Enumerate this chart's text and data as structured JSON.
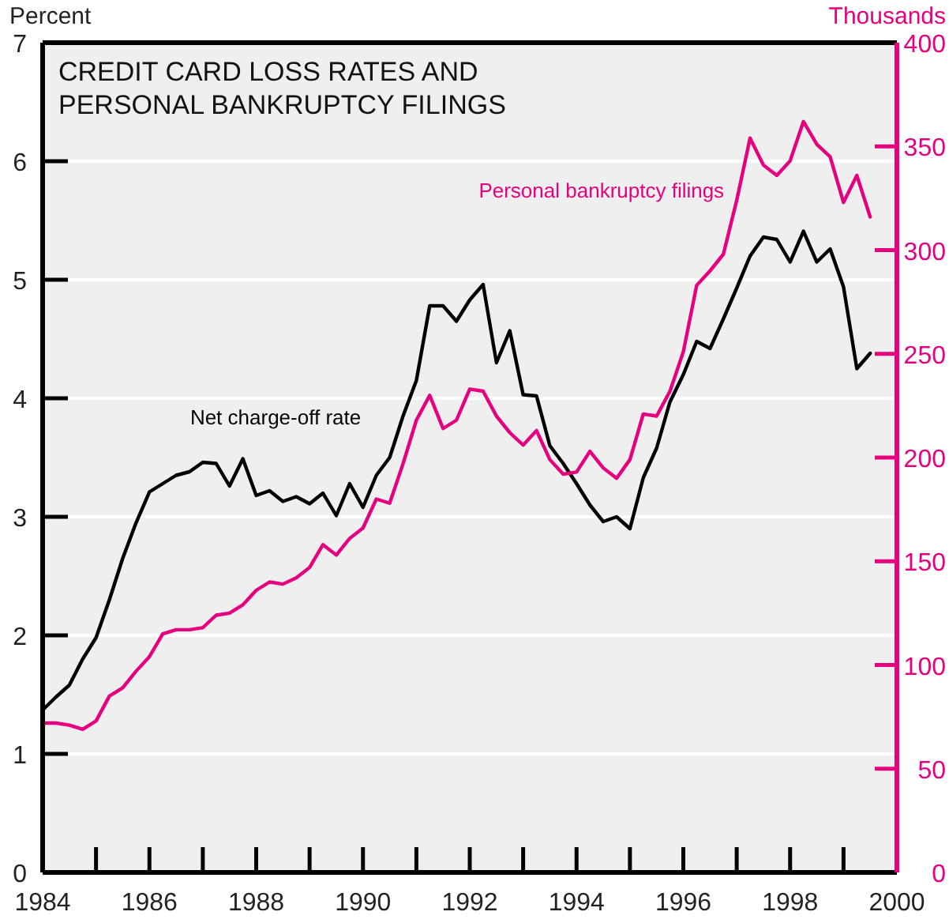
{
  "chart_data": {
    "type": "line",
    "title": "CREDIT CARD LOSS RATES AND\nPERSONAL BANKRUPTCY FILINGS",
    "ylabel": "Percent",
    "y2label": "Thousands",
    "x": [
      1984,
      1984.25,
      1984.5,
      1984.75,
      1985,
      1985.25,
      1985.5,
      1985.75,
      1986,
      1986.25,
      1986.5,
      1986.75,
      1987,
      1987.25,
      1987.5,
      1987.75,
      1988,
      1988.25,
      1988.5,
      1988.75,
      1989,
      1989.25,
      1989.5,
      1989.75,
      1990,
      1990.25,
      1990.5,
      1990.75,
      1991,
      1991.25,
      1991.5,
      1991.75,
      1992,
      1992.25,
      1992.5,
      1992.75,
      1993,
      1993.25,
      1993.5,
      1993.75,
      1994,
      1994.25,
      1994.5,
      1994.75,
      1995,
      1995.25,
      1995.5,
      1995.75,
      1996,
      1996.25,
      1996.5,
      1996.75,
      1997,
      1997.25,
      1997.5,
      1997.75,
      1998,
      1998.25,
      1998.5,
      1998.75,
      1999,
      1999.25,
      1999.5
    ],
    "series": [
      {
        "name": "Net charge-off rate",
        "color": "#000000",
        "values": [
          1.37,
          1.48,
          1.58,
          1.8,
          1.98,
          2.3,
          2.65,
          2.95,
          3.21,
          3.28,
          3.35,
          3.38,
          3.46,
          3.45,
          3.26,
          3.49,
          3.18,
          3.22,
          3.13,
          3.17,
          3.11,
          3.2,
          3.01,
          3.28,
          3.08,
          3.35,
          3.5,
          3.85,
          4.15,
          4.78,
          4.78,
          4.65,
          4.83,
          4.96,
          4.3,
          4.57,
          4.03,
          4.02,
          3.6,
          3.45,
          3.28,
          3.1,
          2.96,
          3.0,
          2.9,
          3.33,
          3.58,
          3.97,
          4.2,
          4.48,
          4.42,
          4.67,
          4.93,
          5.2,
          5.36,
          5.34,
          5.15,
          5.41,
          5.15,
          5.26,
          4.94,
          4.25,
          4.38
        ]
      },
      {
        "name": "Personal bankruptcy filings",
        "color": "#e6007e",
        "axis": "y2",
        "values": [
          72,
          72,
          71,
          69,
          73,
          85,
          89,
          97,
          104,
          115,
          117,
          117,
          118,
          124,
          125,
          129,
          136,
          140,
          139,
          142,
          147,
          158,
          153,
          161,
          166,
          180,
          178,
          197,
          218,
          230,
          214,
          218,
          233,
          232,
          220,
          212,
          206,
          213,
          199,
          192,
          193,
          203,
          195,
          190,
          199,
          221,
          220,
          232,
          251,
          283,
          290,
          298,
          324,
          354,
          341,
          336,
          343,
          362,
          351,
          345,
          323,
          336,
          316
        ]
      }
    ],
    "xlim": [
      1984,
      2000
    ],
    "xticks": [
      1984,
      {
        "value": 1985,
        "label": null
      },
      1986,
      {
        "value": 1987,
        "label": null
      },
      1988,
      {
        "value": 1989,
        "label": null
      },
      1990,
      {
        "value": 1991,
        "label": null
      },
      1992,
      {
        "value": 1993,
        "label": null
      },
      1994,
      {
        "value": 1995,
        "label": null
      },
      1996,
      {
        "value": 1997,
        "label": null
      },
      1998,
      {
        "value": 1999,
        "label": null
      },
      2000
    ],
    "ylim": [
      0,
      7
    ],
    "yticks": [
      0,
      1,
      2,
      3,
      4,
      5,
      6,
      7
    ],
    "y2lim": [
      0,
      400
    ],
    "y2ticks": [
      0,
      50,
      100,
      150,
      200,
      250,
      300,
      350,
      400
    ],
    "grid": "y",
    "legend": false,
    "marker": "none",
    "line_style": "solid"
  }
}
